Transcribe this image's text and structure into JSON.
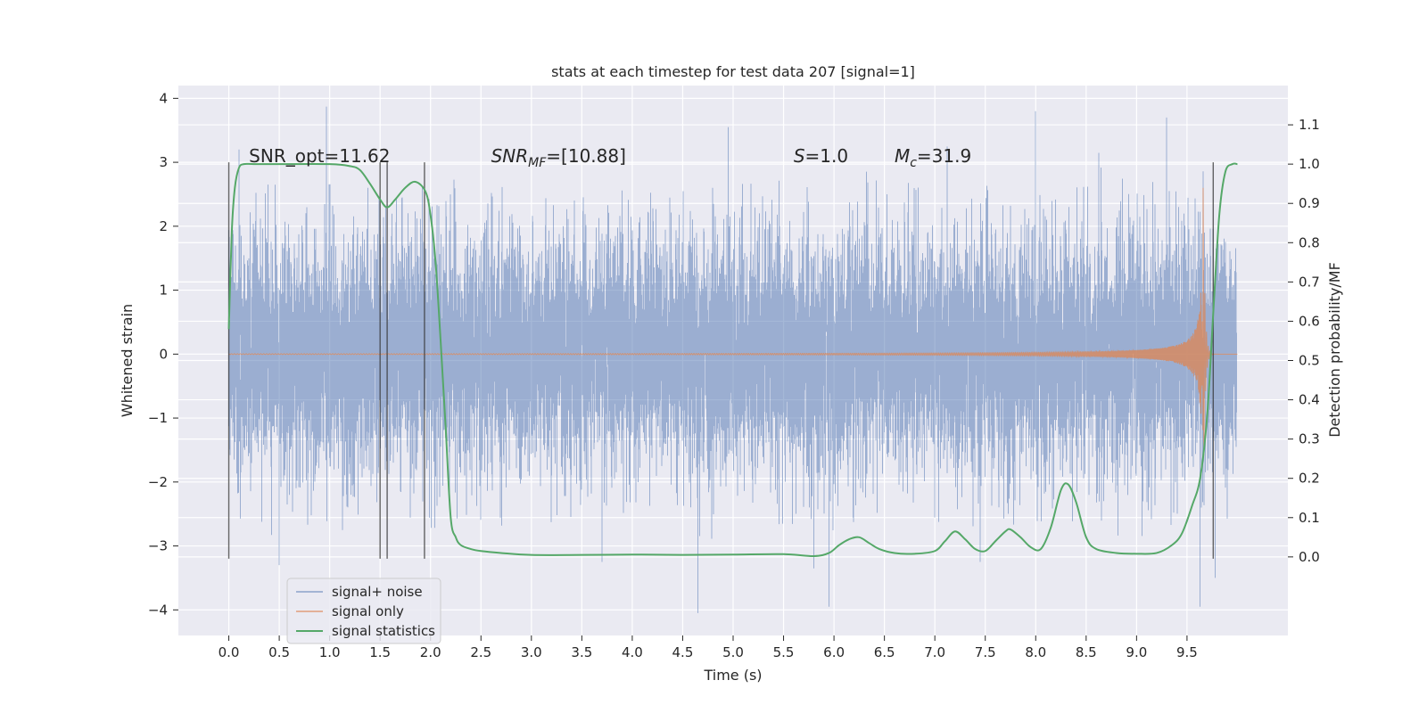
{
  "chart_data": {
    "type": "line",
    "title": "stats at each timestep for test data 207 [signal=1]",
    "xlabel": "Time (s)",
    "ylabel": "Whitened strain",
    "y2label": "Detection probability/MF",
    "xlim": [
      -0.5,
      10.5
    ],
    "ylim": [
      -4.4,
      4.2
    ],
    "y2lim": [
      -0.2,
      1.2
    ],
    "xticks": [
      0.0,
      0.5,
      1.0,
      1.5,
      2.0,
      2.5,
      3.0,
      3.5,
      4.0,
      4.5,
      5.0,
      5.5,
      6.0,
      6.5,
      7.0,
      7.5,
      8.0,
      8.5,
      9.0,
      9.5
    ],
    "xtick_labels": [
      "0.0",
      "0.5",
      "1.0",
      "1.5",
      "2.0",
      "2.5",
      "3.0",
      "3.5",
      "4.0",
      "4.5",
      "5.0",
      "5.5",
      "6.0",
      "6.5",
      "7.0",
      "7.5",
      "8.0",
      "8.5",
      "9.0",
      "9.5"
    ],
    "yticks": [
      -4,
      -3,
      -2,
      -1,
      0,
      1,
      2,
      3,
      4
    ],
    "ytick_labels": [
      "−4",
      "−3",
      "−2",
      "−1",
      "0",
      "1",
      "2",
      "3",
      "4"
    ],
    "y2ticks": [
      0.0,
      0.1,
      0.2,
      0.3,
      0.4,
      0.5,
      0.6,
      0.7,
      0.8,
      0.9,
      1.0,
      1.1
    ],
    "y2tick_labels": [
      "0.0",
      "0.1",
      "0.2",
      "0.3",
      "0.4",
      "0.5",
      "0.6",
      "0.7",
      "0.8",
      "0.9",
      "1.0",
      "1.1"
    ],
    "grid": true,
    "legend_position": "lower-left",
    "annotations": [
      {
        "text": "SNR_opt=11.62",
        "x": 0.2,
        "y": 3.1
      },
      {
        "text": "=[10.88]",
        "math": "SNR",
        "sub": "MF",
        "x": 2.6,
        "y": 3.1
      },
      {
        "text": "=1.0",
        "math": "S",
        "sub": "",
        "x": 5.6,
        "y": 3.1
      },
      {
        "text": "=31.9",
        "math": "M",
        "sub": "c",
        "x": 6.6,
        "y": 3.1
      }
    ],
    "vertical_lines_x": [
      0.0,
      1.5,
      1.57,
      1.94,
      9.76
    ],
    "vertical_lines_range": [
      -3.2,
      3.0
    ],
    "series": [
      {
        "name": "signal+ noise",
        "color": "#4c72b0",
        "kind": "noise",
        "x_range": [
          0.0,
          10.0
        ],
        "typical_amplitude": 1.5,
        "extreme_points": [
          [
            0.1,
            3.2
          ],
          [
            0.5,
            -3.3
          ],
          [
            4.65,
            -4.05
          ],
          [
            4.95,
            3.55
          ],
          [
            5.8,
            -3.35
          ],
          [
            5.95,
            -3.95
          ],
          [
            8.0,
            3.8
          ],
          [
            9.3,
            3.7
          ],
          [
            9.63,
            -3.95
          ],
          [
            9.78,
            -3.5
          ],
          [
            3.7,
            -3.25
          ],
          [
            7.45,
            -3.25
          ]
        ]
      },
      {
        "name": "signal only",
        "color": "#dd8452",
        "kind": "chirp",
        "merger_time": 9.66,
        "peak_amplitude": 2.6
      },
      {
        "name": "signal statistics",
        "color": "#55a868",
        "kind": "line",
        "axis": "y2",
        "x": [
          0.0,
          0.03,
          0.06,
          0.1,
          0.15,
          0.25,
          0.5,
          1.0,
          1.2,
          1.3,
          1.4,
          1.5,
          1.57,
          1.65,
          1.75,
          1.85,
          1.95,
          2.0,
          2.05,
          2.1,
          2.15,
          2.2,
          2.25,
          2.3,
          2.4,
          2.5,
          2.7,
          3.0,
          3.5,
          4.0,
          4.5,
          5.0,
          5.5,
          5.8,
          5.95,
          6.05,
          6.15,
          6.25,
          6.35,
          6.45,
          6.6,
          6.8,
          7.0,
          7.1,
          7.2,
          7.3,
          7.4,
          7.5,
          7.6,
          7.7,
          7.75,
          7.85,
          7.95,
          8.05,
          8.15,
          8.25,
          8.32,
          8.4,
          8.5,
          8.6,
          8.8,
          9.0,
          9.2,
          9.35,
          9.45,
          9.55,
          9.63,
          9.7,
          9.76,
          9.82,
          9.88,
          9.95,
          10.0
        ],
        "y": [
          0.58,
          0.83,
          0.94,
          0.99,
          1.0,
          1.0,
          1.0,
          1.0,
          0.995,
          0.985,
          0.95,
          0.91,
          0.89,
          0.91,
          0.94,
          0.955,
          0.93,
          0.87,
          0.75,
          0.55,
          0.33,
          0.1,
          0.05,
          0.03,
          0.02,
          0.015,
          0.01,
          0.005,
          0.005,
          0.006,
          0.005,
          0.006,
          0.007,
          0.002,
          0.01,
          0.03,
          0.045,
          0.05,
          0.035,
          0.02,
          0.01,
          0.008,
          0.015,
          0.04,
          0.065,
          0.045,
          0.02,
          0.015,
          0.04,
          0.065,
          0.07,
          0.05,
          0.025,
          0.02,
          0.075,
          0.17,
          0.185,
          0.14,
          0.05,
          0.02,
          0.01,
          0.008,
          0.01,
          0.03,
          0.06,
          0.13,
          0.2,
          0.36,
          0.62,
          0.87,
          0.98,
          1.0,
          1.0
        ]
      }
    ]
  }
}
